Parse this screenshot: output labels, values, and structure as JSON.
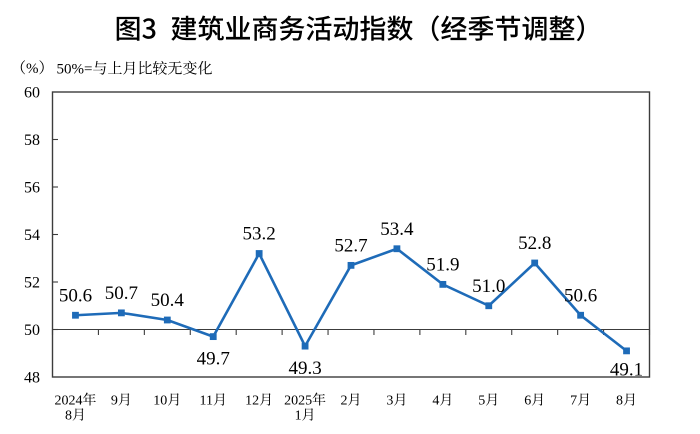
{
  "page": {
    "background": "#ffffff"
  },
  "chart_data": {
    "type": "line",
    "title": "图3 建筑业商务活动指数（经季节调整）",
    "unit_label": "（%）",
    "note": "50%=与上月比较无变化",
    "categories": [
      "2024年\n8月",
      "9月",
      "10月",
      "11月",
      "12月",
      "2025年\n1月",
      "2月",
      "3月",
      "4月",
      "5月",
      "6月",
      "7月",
      "8月"
    ],
    "values": [
      50.6,
      50.7,
      50.4,
      49.7,
      53.2,
      49.3,
      52.7,
      53.4,
      51.9,
      51.0,
      52.8,
      50.6,
      49.1
    ],
    "ylim": [
      48,
      60
    ],
    "ytick_step": 2,
    "baseline_value": 50,
    "value_decimals": 1,
    "grid": false,
    "legend": null,
    "colors": {
      "series": "#1e6bb8",
      "axis": "#3c3c3c",
      "text": "#000000"
    }
  }
}
